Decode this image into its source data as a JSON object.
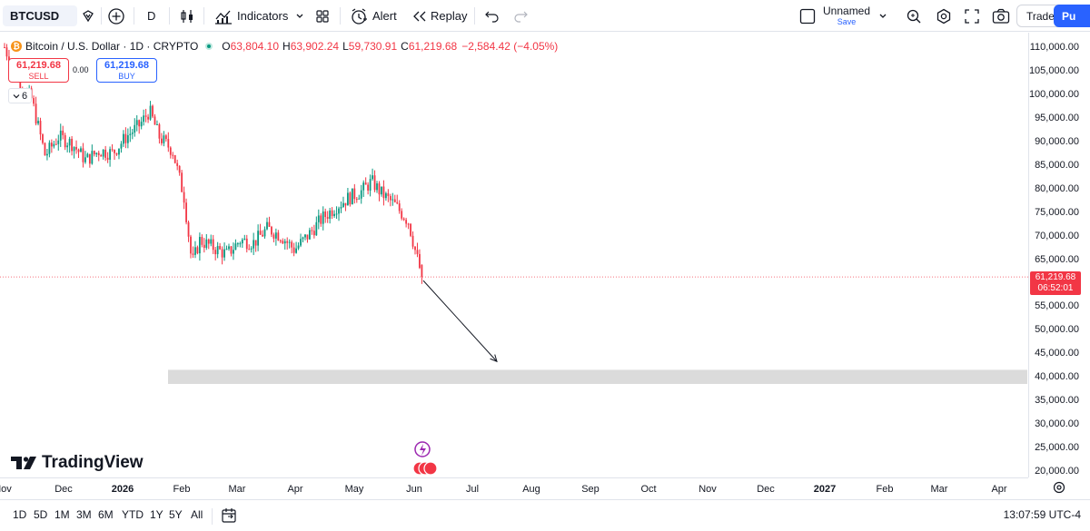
{
  "toolbar": {
    "symbol": "BTCUSD",
    "interval": "D",
    "indicators_label": "Indicators",
    "alert_label": "Alert",
    "replay_label": "Replay",
    "layout_name": "Unnamed",
    "save_label": "Save",
    "trade_label": "Trade",
    "publish_label": "Pu"
  },
  "legend": {
    "title": "Bitcoin / U.S. Dollar · 1D · CRYPTO",
    "open_key": "O",
    "open": "63,804.10",
    "high_key": "H",
    "high": "63,902.24",
    "low_key": "L",
    "low": "59,730.91",
    "close_key": "C",
    "close": "61,219.68",
    "change": "−2,584.42 (−4.05%)",
    "collapse_count": "6"
  },
  "order_buttons": {
    "sell_price": "61,219.68",
    "sell_label": "SELL",
    "spread": "0.00",
    "buy_price": "61,219.68",
    "buy_label": "BUY"
  },
  "price_tag": {
    "price": "61,219.68",
    "countdown": "06:52:01"
  },
  "colors": {
    "up": "#089981",
    "down": "#f23645",
    "accent": "#2962ff",
    "zone": "#d9d9d9"
  },
  "price_axis": [
    "110,000.00",
    "105,000.00",
    "100,000.00",
    "95,000.00",
    "90,000.00",
    "85,000.00",
    "80,000.00",
    "75,000.00",
    "70,000.00",
    "65,000.00",
    "60,000.00",
    "55,000.00",
    "50,000.00",
    "45,000.00",
    "40,000.00",
    "35,000.00",
    "30,000.00",
    "25,000.00",
    "20,000.00"
  ],
  "time_axis": [
    "Nov",
    "Dec",
    "2026",
    "Feb",
    "Mar",
    "Apr",
    "May",
    "Jun",
    "Jul",
    "Aug",
    "Sep",
    "Oct",
    "Nov",
    "Dec",
    "2027",
    "Feb",
    "Mar",
    "Apr"
  ],
  "branding": "TradingView",
  "bottom": {
    "ranges": [
      "1D",
      "5D",
      "1M",
      "3M",
      "6M",
      "YTD",
      "1Y",
      "5Y",
      "All"
    ],
    "clock": "13:07:59 UTC-4"
  },
  "chart_data": {
    "type": "candlestick",
    "symbol": "BTCUSD",
    "last_close": 61219.68,
    "y_range": [
      18000,
      114000
    ],
    "support_zone": [
      38500,
      41500
    ],
    "projection_target": 42500,
    "path": [
      [
        "2025-11-01",
        110000
      ],
      [
        "2025-11-08",
        103000
      ],
      [
        "2025-11-15",
        99000
      ],
      [
        "2025-11-22",
        87000
      ],
      [
        "2025-11-29",
        91000
      ],
      [
        "2025-12-06",
        89500
      ],
      [
        "2025-12-13",
        86000
      ],
      [
        "2025-12-20",
        88000
      ],
      [
        "2025-12-27",
        87500
      ],
      [
        "2026-01-03",
        91000
      ],
      [
        "2026-01-10",
        93500
      ],
      [
        "2026-01-15",
        96500
      ],
      [
        "2026-01-20",
        91000
      ],
      [
        "2026-01-27",
        88000
      ],
      [
        "2026-02-02",
        78000
      ],
      [
        "2026-02-06",
        64000
      ],
      [
        "2026-02-10",
        69000
      ],
      [
        "2026-02-17",
        67500
      ],
      [
        "2026-02-24",
        66000
      ],
      [
        "2026-03-03",
        69000
      ],
      [
        "2026-03-10",
        68500
      ],
      [
        "2026-03-17",
        71500
      ],
      [
        "2026-03-24",
        70000
      ],
      [
        "2026-03-31",
        67000
      ],
      [
        "2026-04-07",
        70000
      ],
      [
        "2026-04-14",
        73500
      ],
      [
        "2026-04-21",
        76000
      ],
      [
        "2026-04-28",
        78000
      ],
      [
        "2026-05-05",
        79500
      ],
      [
        "2026-05-10",
        81500
      ],
      [
        "2026-05-15",
        79000
      ],
      [
        "2026-05-22",
        76500
      ],
      [
        "2026-05-29",
        73000
      ],
      [
        "2026-06-02",
        66000
      ],
      [
        "2026-06-05",
        61219.68
      ]
    ]
  }
}
